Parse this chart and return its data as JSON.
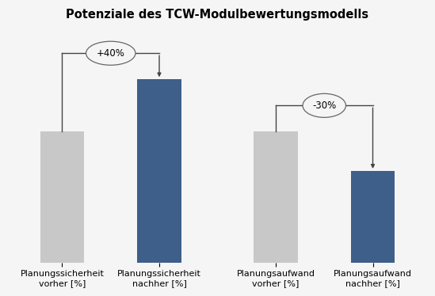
{
  "title": "Potenziale des TCW-Modulbewertungsmodells",
  "categories": [
    "Planungssicherheit\nvorher [%]",
    "Planungssicherheit\nnachher [%]",
    "Planungsaufwand\nvorher [%]",
    "Planungsaufwand\nnachher [%]"
  ],
  "values": [
    50,
    70,
    50,
    35
  ],
  "colors": [
    "#c8c8c8",
    "#3d5f8a",
    "#c8c8c8",
    "#3d5f8a"
  ],
  "annotations": [
    {
      "label": "+40%",
      "from_bar": 0,
      "to_bar": 1
    },
    {
      "label": "-30%",
      "from_bar": 2,
      "to_bar": 3
    }
  ],
  "ylim": [
    0,
    90
  ],
  "bar_width": 0.45,
  "background_color": "#f5f5f5",
  "title_fontsize": 10.5,
  "tick_fontsize": 8,
  "grid_color": "#d8d8d8",
  "line_color": "#444444"
}
